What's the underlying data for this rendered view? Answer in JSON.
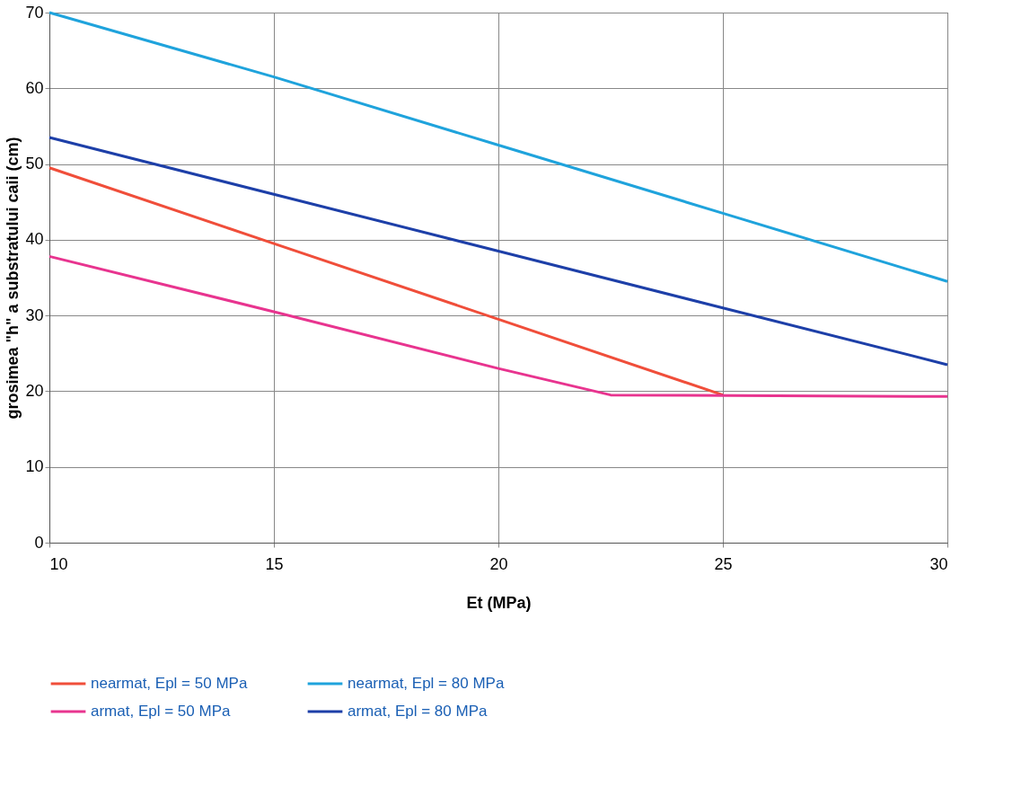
{
  "chart_data": {
    "type": "line",
    "xlabel": "Et (MPa)",
    "ylabel": "grosimea \"h\" a substratului caii (cm)",
    "xlim": [
      10,
      30
    ],
    "xticks": [
      10,
      15,
      20,
      25,
      30
    ],
    "ylim": [
      0,
      70
    ],
    "yticks": [
      0,
      10,
      20,
      30,
      40,
      50,
      60,
      70
    ],
    "grid": true,
    "legend": "bottom",
    "marker": "none",
    "line_style": "solid",
    "series": [
      {
        "name": "nearmat, Epl = 50 MPa",
        "color": "#f04e3a",
        "x": [
          10,
          15,
          20,
          25
        ],
        "values": [
          49.5,
          39.5,
          29.5,
          19.5
        ]
      },
      {
        "name": "nearmat, Epl = 80 MPa",
        "color": "#1fa3dc",
        "x": [
          10,
          15,
          20,
          25,
          30
        ],
        "values": [
          70,
          61.5,
          52.5,
          43.5,
          34.5
        ]
      },
      {
        "name": "armat, Epl = 50 MPa",
        "color": "#e8348f",
        "x": [
          10,
          15,
          20,
          22.5,
          30
        ],
        "values": [
          37.8,
          30.5,
          23,
          19.5,
          19.3
        ]
      },
      {
        "name": "armat, Epl = 80 MPa",
        "color": "#1d3fa8",
        "x": [
          10,
          20,
          25,
          30
        ],
        "values": [
          53.5,
          38.5,
          31,
          23.5
        ]
      }
    ]
  }
}
